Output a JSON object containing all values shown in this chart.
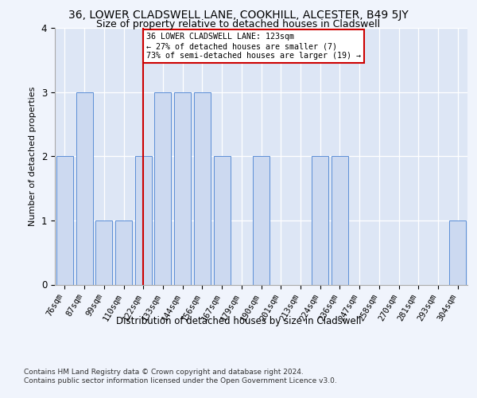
{
  "title": "36, LOWER CLADSWELL LANE, COOKHILL, ALCESTER, B49 5JY",
  "subtitle": "Size of property relative to detached houses in Cladswell",
  "xlabel": "Distribution of detached houses by size in Cladswell",
  "ylabel": "Number of detached properties",
  "categories": [
    "76sqm",
    "87sqm",
    "99sqm",
    "110sqm",
    "122sqm",
    "133sqm",
    "144sqm",
    "156sqm",
    "167sqm",
    "179sqm",
    "190sqm",
    "201sqm",
    "213sqm",
    "224sqm",
    "236sqm",
    "247sqm",
    "258sqm",
    "270sqm",
    "281sqm",
    "293sqm",
    "304sqm"
  ],
  "values": [
    2,
    3,
    1,
    1,
    2,
    3,
    3,
    3,
    2,
    0,
    2,
    0,
    0,
    2,
    2,
    0,
    0,
    0,
    0,
    0,
    1
  ],
  "bar_color": "#ccd9f0",
  "bar_edge_color": "#5b8ed6",
  "highlight_index": 4,
  "highlight_line_color": "#cc0000",
  "annotation_text": "36 LOWER CLADSWELL LANE: 123sqm\n← 27% of detached houses are smaller (7)\n73% of semi-detached houses are larger (19) →",
  "annotation_box_color": "#ffffff",
  "annotation_box_edge": "#cc0000",
  "ylim": [
    0,
    4
  ],
  "yticks": [
    0,
    1,
    2,
    3,
    4
  ],
  "footer1": "Contains HM Land Registry data © Crown copyright and database right 2024.",
  "footer2": "Contains public sector information licensed under the Open Government Licence v3.0.",
  "title_fontsize": 10,
  "subtitle_fontsize": 9,
  "bg_color": "#f0f4fc",
  "plot_bg_color": "#dde6f5"
}
